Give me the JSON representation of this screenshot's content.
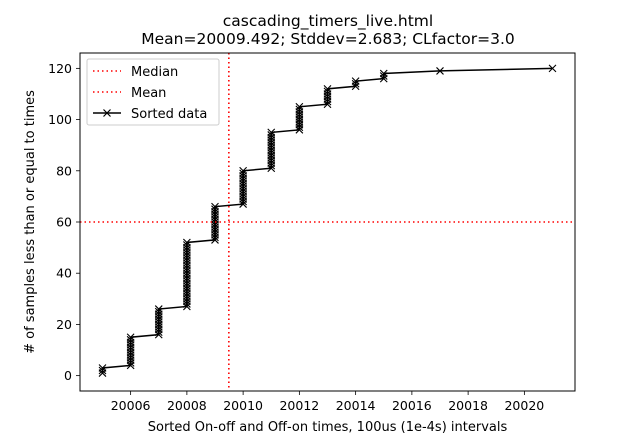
{
  "chart_data": {
    "type": "line",
    "title": "cascading_timers_live.html",
    "subtitle": "Mean=20009.492; Stddev=2.683; CLfactor=3.0",
    "xlabel": "Sorted On-off and Off-on times, 100us (1e-4s) intervals",
    "ylabel": "# of samples less than or equal to times",
    "xlim": [
      20004.2,
      20021.8
    ],
    "ylim": [
      -6,
      126
    ],
    "x_ticks": [
      20006,
      20008,
      20010,
      20012,
      20014,
      20016,
      20018,
      20020
    ],
    "y_ticks": [
      0,
      20,
      40,
      60,
      80,
      100,
      120
    ],
    "grid": false,
    "legend": {
      "placement": "upper-left",
      "entries": [
        {
          "label": "Median",
          "style": "dotted-red"
        },
        {
          "label": "Mean",
          "style": "dotted-red"
        },
        {
          "label": "Sorted data",
          "style": "black-line-x-marker"
        }
      ]
    },
    "reference_lines": {
      "median_y": 60,
      "mean_x": 20009.492,
      "color": "#ff0000"
    },
    "series": [
      {
        "name": "Sorted data",
        "color": "#000000",
        "marker": "x",
        "groups": [
          {
            "x": 20005,
            "from": 1,
            "to": 3
          },
          {
            "x": 20006,
            "from": 4,
            "to": 15
          },
          {
            "x": 20007,
            "from": 16,
            "to": 26
          },
          {
            "x": 20008,
            "from": 27,
            "to": 52
          },
          {
            "x": 20009,
            "from": 53,
            "to": 66
          },
          {
            "x": 20010,
            "from": 67,
            "to": 80
          },
          {
            "x": 20011,
            "from": 81,
            "to": 95
          },
          {
            "x": 20012,
            "from": 96,
            "to": 105
          },
          {
            "x": 20013,
            "from": 106,
            "to": 112
          },
          {
            "x": 20014,
            "from": 113,
            "to": 115
          },
          {
            "x": 20015,
            "from": 116,
            "to": 118
          },
          {
            "x": 20017,
            "from": 119,
            "to": 119
          },
          {
            "x": 20021,
            "from": 120,
            "to": 120
          }
        ]
      }
    ]
  }
}
